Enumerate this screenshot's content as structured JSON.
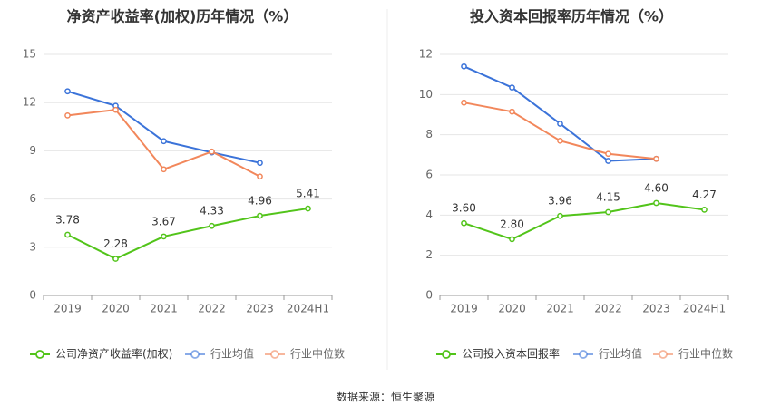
{
  "source_text": "数据来源：恒生聚源",
  "colors": {
    "company": "#52c41a",
    "industry_avg": "#3b73d9",
    "industry_median": "#f2875b",
    "grid": "#e6e6e6",
    "axis": "#666666",
    "title": "#333333"
  },
  "chart_data": [
    {
      "type": "line",
      "title": "净资产收益率(加权)历年情况（%）",
      "categories": [
        "2019",
        "2020",
        "2021",
        "2022",
        "2023",
        "2024H1"
      ],
      "ylim": [
        0,
        15
      ],
      "yticks": [
        0,
        3,
        6,
        9,
        12,
        15
      ],
      "grid": true,
      "legend_position": "bottom",
      "series": [
        {
          "name": "公司净资产收益率(加权)",
          "color_key": "company",
          "values": [
            3.78,
            2.28,
            3.67,
            4.33,
            4.96,
            5.41
          ],
          "labels": [
            "3.78",
            "2.28",
            "3.67",
            "4.33",
            "4.96",
            "5.41"
          ]
        },
        {
          "name": "行业均值",
          "color_key": "industry_avg",
          "values": [
            12.7,
            11.8,
            9.6,
            8.9,
            8.25,
            null
          ]
        },
        {
          "name": "行业中位数",
          "color_key": "industry_median",
          "values": [
            11.2,
            11.55,
            7.85,
            8.95,
            7.4,
            null
          ]
        }
      ]
    },
    {
      "type": "line",
      "title": "投入资本回报率历年情况（%）",
      "categories": [
        "2019",
        "2020",
        "2021",
        "2022",
        "2023",
        "2024H1"
      ],
      "ylim": [
        0,
        12
      ],
      "yticks": [
        0,
        2,
        4,
        6,
        8,
        10,
        12
      ],
      "grid": true,
      "legend_position": "bottom",
      "series": [
        {
          "name": "公司投入资本回报率",
          "color_key": "company",
          "values": [
            3.6,
            2.8,
            3.96,
            4.15,
            4.6,
            4.27
          ],
          "labels": [
            "3.60",
            "2.80",
            "3.96",
            "4.15",
            "4.60",
            "4.27"
          ]
        },
        {
          "name": "行业均值",
          "color_key": "industry_avg",
          "values": [
            11.4,
            10.35,
            8.55,
            6.7,
            6.8,
            null
          ]
        },
        {
          "name": "行业中位数",
          "color_key": "industry_median",
          "values": [
            9.6,
            9.15,
            7.7,
            7.05,
            6.8,
            null
          ]
        }
      ]
    }
  ]
}
